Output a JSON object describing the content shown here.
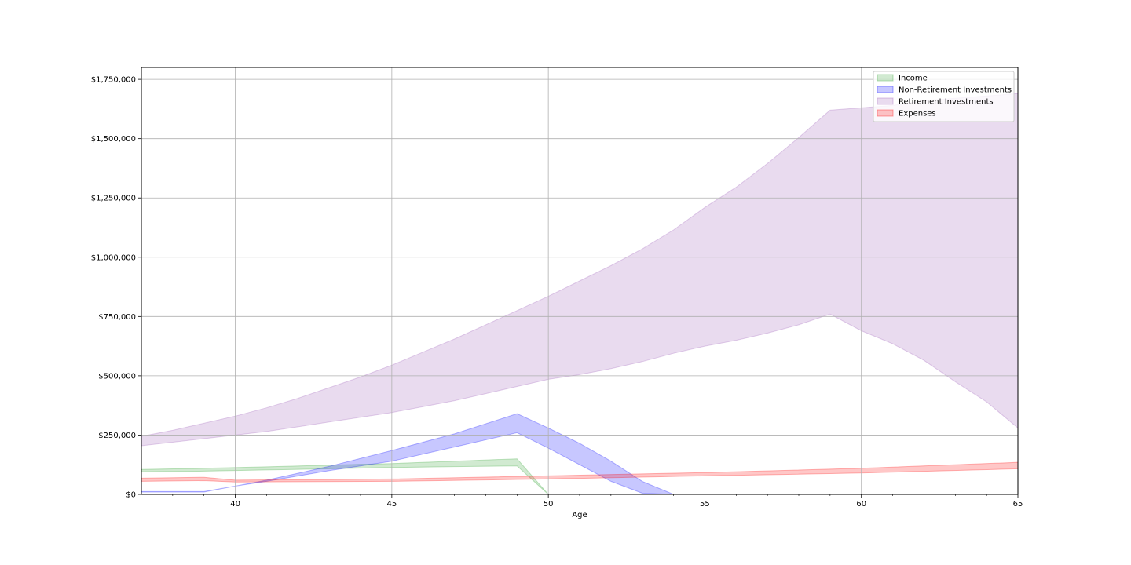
{
  "chart_data": {
    "type": "area",
    "title": "",
    "xlabel": "Age",
    "ylabel": "",
    "xlim": [
      37,
      65
    ],
    "ylim": [
      0,
      1800000
    ],
    "grid": true,
    "legend": "top-right",
    "x_ticks": [
      40,
      45,
      50,
      55,
      60,
      65
    ],
    "x_minor_ticks": [
      38,
      39,
      41,
      42,
      43,
      44,
      46,
      47,
      48,
      49,
      51,
      52,
      53,
      54,
      56,
      57,
      58,
      59,
      61,
      62,
      63,
      64
    ],
    "y_ticks": [
      0,
      250000,
      500000,
      750000,
      1000000,
      1250000,
      1500000,
      1750000
    ],
    "y_tick_labels": [
      "$0",
      "$250,000",
      "$500,000",
      "$750,000",
      "$1,000,000",
      "$1,250,000",
      "$1,500,000",
      "$1,750,000"
    ],
    "series": [
      {
        "name": "Income",
        "color": "#2ca02c",
        "x": [
          37,
          39,
          41,
          43,
          45,
          47,
          49,
          50,
          51,
          55,
          60,
          65
        ],
        "lower": [
          95000,
          98000,
          103000,
          108000,
          113000,
          117000,
          120000,
          0,
          0,
          0,
          0,
          0
        ],
        "upper": [
          105000,
          110000,
          116000,
          123000,
          130000,
          140000,
          150000,
          0,
          0,
          0,
          0,
          0
        ]
      },
      {
        "name": "Non-Retirement Investments",
        "color": "#0000ff",
        "x": [
          37,
          39,
          40,
          41,
          43,
          45,
          47,
          49,
          50,
          51,
          52,
          53,
          54,
          55,
          60,
          65
        ],
        "lower": [
          10000,
          10000,
          35000,
          55000,
          100000,
          140000,
          200000,
          260000,
          195000,
          125000,
          55000,
          5000,
          0,
          0,
          0,
          0
        ],
        "upper": [
          12000,
          12000,
          35000,
          60000,
          118000,
          185000,
          255000,
          340000,
          280000,
          215000,
          140000,
          55000,
          0,
          0,
          0,
          0
        ]
      },
      {
        "name": "Retirement Investments",
        "color": "#9b59b6",
        "x": [
          37,
          38,
          39,
          40,
          41,
          42,
          43,
          44,
          45,
          46,
          47,
          48,
          49,
          50,
          51,
          52,
          53,
          54,
          55,
          56,
          57,
          58,
          59,
          60,
          61,
          62,
          63,
          64,
          65
        ],
        "lower": [
          205000,
          220000,
          235000,
          250000,
          265000,
          285000,
          305000,
          325000,
          345000,
          370000,
          395000,
          425000,
          455000,
          485000,
          505000,
          530000,
          560000,
          595000,
          625000,
          650000,
          680000,
          715000,
          760000,
          690000,
          635000,
          565000,
          475000,
          390000,
          280000
        ],
        "upper": [
          245000,
          270000,
          300000,
          330000,
          365000,
          405000,
          450000,
          495000,
          545000,
          600000,
          655000,
          715000,
          775000,
          835000,
          900000,
          965000,
          1035000,
          1115000,
          1210000,
          1295000,
          1395000,
          1505000,
          1620000,
          1630000,
          1640000,
          1660000,
          1670000,
          1680000,
          1690000
        ]
      },
      {
        "name": "Expenses",
        "color": "#ff0000",
        "x": [
          37,
          39,
          40,
          45,
          50,
          55,
          60,
          65
        ],
        "lower": [
          55000,
          58000,
          52000,
          55000,
          65000,
          78000,
          90000,
          108000
        ],
        "upper": [
          68000,
          72000,
          60000,
          65000,
          78000,
          92000,
          110000,
          135000
        ]
      }
    ]
  }
}
